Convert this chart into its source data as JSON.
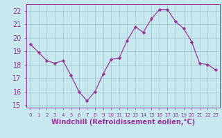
{
  "x": [
    0,
    1,
    2,
    3,
    4,
    5,
    6,
    7,
    8,
    9,
    10,
    11,
    12,
    13,
    14,
    15,
    16,
    17,
    18,
    19,
    20,
    21,
    22,
    23
  ],
  "y": [
    19.5,
    18.9,
    18.3,
    18.1,
    18.3,
    17.2,
    16.0,
    15.3,
    16.0,
    17.3,
    18.4,
    18.5,
    19.8,
    20.8,
    20.4,
    21.4,
    22.1,
    22.1,
    21.2,
    20.7,
    19.7,
    18.1,
    18.0,
    17.6
  ],
  "line_color": "#993399",
  "marker_color": "#993399",
  "bg_color": "#c8e8f0",
  "grid_color": "#a0c8d0",
  "axis_color": "#993399",
  "tick_color": "#993399",
  "ylim": [
    14.8,
    22.5
  ],
  "yticks": [
    15,
    16,
    17,
    18,
    19,
    20,
    21,
    22
  ],
  "xlim": [
    -0.5,
    23.5
  ],
  "xlabel": "Windchill (Refroidissement éolien,°C)",
  "xlabel_color": "#993399",
  "xlabel_fontsize": 7,
  "ytick_fontsize": 7,
  "xtick_fontsize": 5
}
